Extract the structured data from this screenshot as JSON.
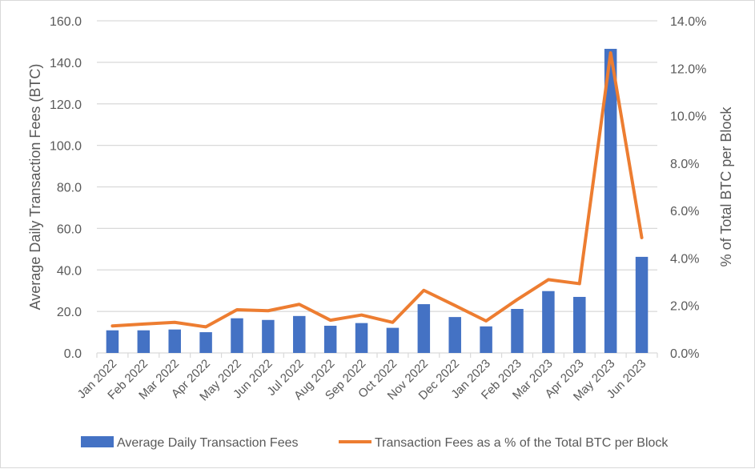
{
  "chart_data": {
    "type": "bar+line",
    "categories": [
      "Jan 2022",
      "Feb 2022",
      "Mar 2022",
      "Apr 2022",
      "May 2022",
      "Jun 2022",
      "Jul 2022",
      "Aug 2022",
      "Sep 2022",
      "Oct 2022",
      "Nov 2022",
      "Dec 2022",
      "Jan 2023",
      "Feb 2023",
      "Mar 2023",
      "Apr 2023",
      "May 2023",
      "Jun 2023"
    ],
    "series": [
      {
        "name": "Average Daily Transaction Fees",
        "type": "bar",
        "axis": "left",
        "color": "#4472C4",
        "values": [
          10.9,
          10.9,
          11.3,
          10.0,
          16.7,
          15.9,
          17.8,
          13.1,
          14.4,
          12.1,
          23.5,
          17.3,
          12.8,
          21.2,
          29.8,
          27.0,
          146.5,
          46.3
        ]
      },
      {
        "name": "Transaction Fees as a % of the Total BTC per Block",
        "type": "line",
        "axis": "right",
        "color": "#ED7D31",
        "values": [
          1.14,
          1.22,
          1.29,
          1.1,
          1.82,
          1.78,
          2.05,
          1.38,
          1.6,
          1.29,
          2.64,
          2.0,
          1.35,
          2.25,
          3.09,
          2.92,
          12.65,
          4.86
        ]
      }
    ],
    "ylabel": "Average Daily Transaction Fees (BTC)",
    "y2label": "% of Total BTC per Block",
    "ylim": [
      0,
      160
    ],
    "y2lim": [
      0,
      14
    ],
    "yticks": [
      "0.0",
      "20.0",
      "40.0",
      "60.0",
      "80.0",
      "100.0",
      "120.0",
      "140.0",
      "160.0"
    ],
    "y2ticks": [
      "0.0%",
      "2.0%",
      "4.0%",
      "6.0%",
      "8.0%",
      "10.0%",
      "12.0%",
      "14.0%"
    ],
    "grid": true,
    "legend": "bottom"
  }
}
